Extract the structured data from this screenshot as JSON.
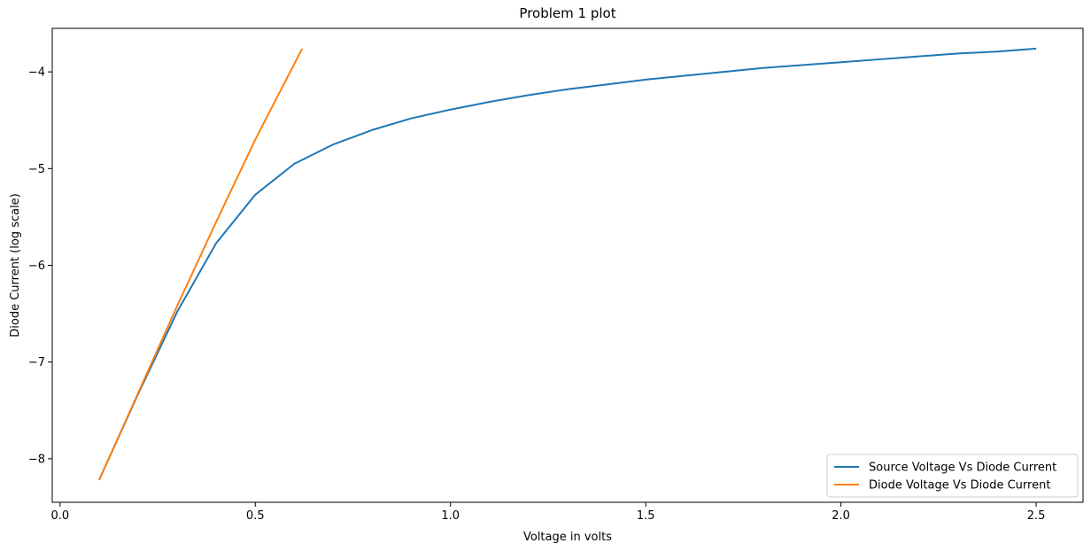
{
  "chart_data": {
    "type": "line",
    "title": "Problem 1 plot",
    "xlabel": "Voltage in volts",
    "ylabel": "Diode Current (log scale)",
    "xlim": [
      -0.02,
      2.62
    ],
    "ylim": [
      -8.45,
      -3.55
    ],
    "xticks": [
      0.0,
      0.5,
      1.0,
      1.5,
      2.0,
      2.5
    ],
    "xtick_labels": [
      "0.0",
      "0.5",
      "1.0",
      "1.5",
      "2.0",
      "2.5"
    ],
    "yticks": [
      -8,
      -7,
      -6,
      -5,
      -4
    ],
    "ytick_labels": [
      "−8",
      "−7",
      "−6",
      "−5",
      "−4"
    ],
    "grid": false,
    "legend_position": "bottom-right",
    "series": [
      {
        "name": "Source Voltage Vs Diode Current",
        "color": "#1f77b4",
        "x": [
          0.1,
          0.2,
          0.3,
          0.4,
          0.5,
          0.6,
          0.7,
          0.8,
          0.9,
          1.0,
          1.1,
          1.2,
          1.3,
          1.4,
          1.5,
          1.6,
          1.7,
          1.8,
          1.9,
          2.0,
          2.1,
          2.2,
          2.3,
          2.4,
          2.5
        ],
        "y": [
          -8.22,
          -7.33,
          -6.48,
          -5.77,
          -5.27,
          -4.95,
          -4.75,
          -4.6,
          -4.48,
          -4.39,
          -4.31,
          -4.24,
          -4.18,
          -4.13,
          -4.08,
          -4.04,
          -4.0,
          -3.96,
          -3.93,
          -3.9,
          -3.87,
          -3.84,
          -3.81,
          -3.79,
          -3.76
        ]
      },
      {
        "name": "Diode Voltage Vs Diode Current",
        "color": "#ff7f0e",
        "x": [
          0.1,
          0.2,
          0.3,
          0.4,
          0.5,
          0.62
        ],
        "y": [
          -8.22,
          -7.32,
          -6.42,
          -5.55,
          -4.7,
          -3.76
        ]
      }
    ]
  }
}
